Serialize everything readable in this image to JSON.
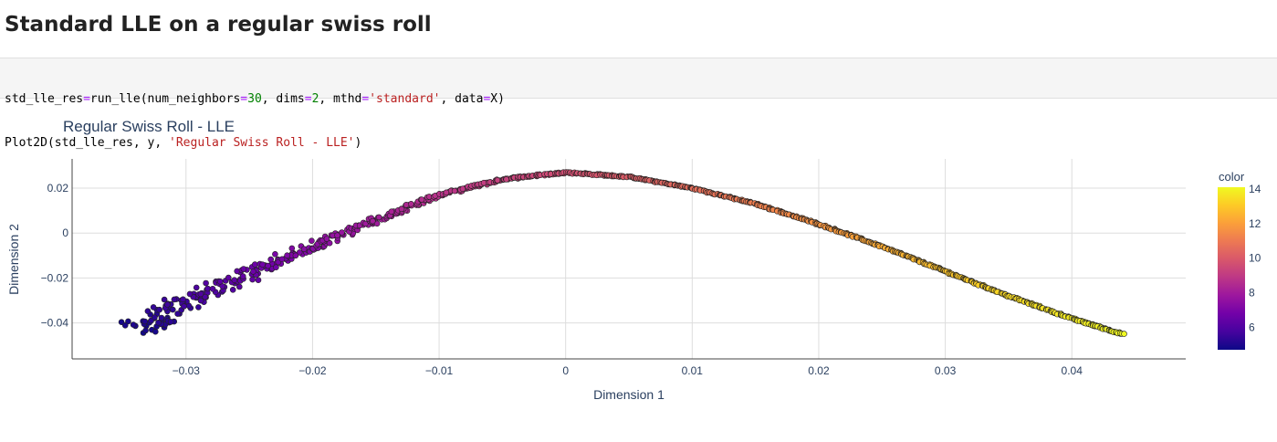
{
  "heading": "Standard LLE on a regular swiss roll",
  "code": {
    "line1": [
      {
        "t": "std_lle_res",
        "c": ""
      },
      {
        "t": "=",
        "c": "op"
      },
      {
        "t": "run_lle(num_neighbors",
        "c": ""
      },
      {
        "t": "=",
        "c": "op"
      },
      {
        "t": "30",
        "c": "num"
      },
      {
        "t": ", dims",
        "c": ""
      },
      {
        "t": "=",
        "c": "op"
      },
      {
        "t": "2",
        "c": "num"
      },
      {
        "t": ", mthd",
        "c": ""
      },
      {
        "t": "=",
        "c": "op"
      },
      {
        "t": "'standard'",
        "c": "str"
      },
      {
        "t": ", data",
        "c": ""
      },
      {
        "t": "=",
        "c": "op"
      },
      {
        "t": "X)",
        "c": ""
      }
    ],
    "line2": [
      {
        "t": "Plot2D(std_lle_res, y, ",
        "c": ""
      },
      {
        "t": "'Regular Swiss Roll - LLE'",
        "c": "str"
      },
      {
        "t": ")",
        "c": ""
      }
    ]
  },
  "chart_data": {
    "type": "scatter",
    "title": "Regular Swiss Roll - LLE",
    "xlabel": "Dimension 1",
    "ylabel": "Dimension 2",
    "xlim": [
      -0.039,
      0.049
    ],
    "ylim": [
      -0.056,
      0.033
    ],
    "x_ticks": [
      -0.03,
      -0.02,
      -0.01,
      0,
      0.01,
      0.02,
      0.03,
      0.04
    ],
    "x_tick_labels": [
      "−0.03",
      "−0.02",
      "−0.01",
      "0",
      "0.01",
      "0.02",
      "0.03",
      "0.04"
    ],
    "y_ticks": [
      -0.04,
      -0.02,
      0,
      0.02
    ],
    "y_tick_labels": [
      "−0.04",
      "−0.02",
      "0",
      "0.02"
    ],
    "grid": true,
    "colorbar": {
      "title": "color",
      "range": [
        4.7,
        14.1
      ],
      "ticks": [
        6,
        8,
        10,
        12,
        14
      ],
      "tick_labels": [
        "6",
        "8",
        "10",
        "12",
        "14"
      ],
      "colorscale": [
        "#0d0887",
        "#46039f",
        "#7201a8",
        "#9c179e",
        "#bd3786",
        "#d8576b",
        "#ed7953",
        "#fb9f3a",
        "#fdca26",
        "#f0f921"
      ]
    },
    "curve": {
      "description": "points lie along a single arch-shaped curve; color increases from left to right",
      "x": [
        -0.034,
        -0.03,
        -0.025,
        -0.02,
        -0.015,
        -0.01,
        -0.005,
        0.0,
        0.005,
        0.01,
        0.015,
        0.02,
        0.025,
        0.03,
        0.035,
        0.04,
        0.044
      ],
      "y": [
        -0.043,
        -0.031,
        -0.018,
        -0.006,
        0.006,
        0.017,
        0.024,
        0.027,
        0.025,
        0.02,
        0.013,
        0.004,
        -0.006,
        -0.017,
        -0.028,
        -0.038,
        -0.045
      ],
      "color": [
        4.8,
        5.6,
        6.5,
        7.3,
        8.0,
        8.7,
        9.2,
        9.6,
        10.1,
        10.6,
        11.1,
        11.7,
        12.3,
        12.9,
        13.4,
        13.8,
        14.1
      ],
      "spread": [
        0.0045,
        0.0035,
        0.0025,
        0.0018,
        0.0012,
        0.0008,
        0.0005,
        0.0004,
        0.0003,
        0.0003,
        0.0003,
        0.0003,
        0.0003,
        0.0003,
        0.0003,
        0.0003,
        0.0003
      ]
    }
  }
}
